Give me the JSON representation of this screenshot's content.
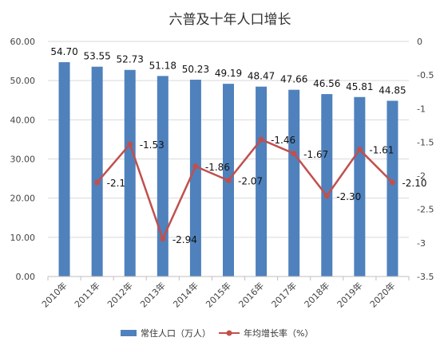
{
  "chart_data": {
    "type": "bar",
    "title": "六普及十年人口增长",
    "categories": [
      "2010年",
      "2011年",
      "2012年",
      "2013年",
      "2014年",
      "2015年",
      "2016年",
      "2017年",
      "2018年",
      "2019年",
      "2020年"
    ],
    "series": [
      {
        "name": "常住人口（万人）",
        "type": "bar",
        "axis": "left",
        "color": "#4f81bd",
        "values": [
          54.7,
          53.55,
          52.73,
          51.18,
          50.23,
          49.19,
          48.47,
          47.66,
          46.56,
          45.81,
          44.85
        ],
        "labels": [
          "54.70",
          "53.55",
          "52.73",
          "51.18",
          "50.23",
          "49.19",
          "48.47",
          "47.66",
          "46.56",
          "45.81",
          "44.85"
        ]
      },
      {
        "name": "年均增长率（%）",
        "type": "line",
        "axis": "right",
        "color": "#c0504d",
        "values": [
          null,
          -2.1,
          -1.53,
          -2.94,
          -1.86,
          -2.07,
          -1.46,
          -1.67,
          -2.3,
          -1.61,
          -2.1
        ],
        "labels": [
          "",
          "-2.1",
          "-1.53",
          "-2.94",
          "-1.86",
          "-2.07",
          "-1.46",
          "-1.67",
          "-2.30",
          "-1.61",
          "-2.10"
        ]
      }
    ],
    "left_axis": {
      "ylim": [
        0,
        60
      ],
      "ticks": [
        0,
        10,
        20,
        30,
        40,
        50,
        60
      ],
      "tick_labels": [
        "0.00",
        "10.00",
        "20.00",
        "30.00",
        "40.00",
        "50.00",
        "60.00"
      ]
    },
    "right_axis": {
      "ylim": [
        -3.5,
        0
      ],
      "ticks": [
        0,
        -0.5,
        -1,
        -1.5,
        -2,
        -2.5,
        -3,
        -3.5
      ],
      "tick_labels": [
        "0",
        "-0.5",
        "-1",
        "-1.5",
        "-2",
        "-2.5",
        "-3",
        "-3.5"
      ]
    },
    "grid": true,
    "legend_position": "bottom"
  }
}
